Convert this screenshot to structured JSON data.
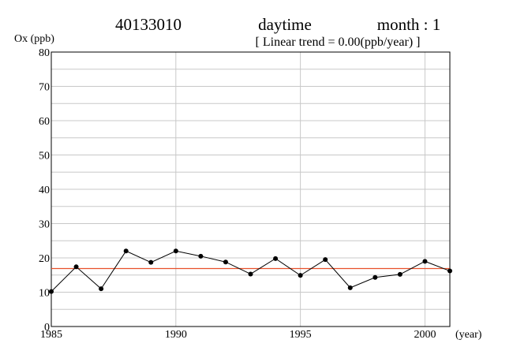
{
  "header": {
    "station": "40133010",
    "period": "daytime",
    "month": "month : 1",
    "trend": "[ Linear trend = 0.00(ppb/year) ]"
  },
  "chart_data": {
    "type": "line",
    "ylabel": "Ox (ppb)",
    "xlabel": "(year)",
    "xlim": [
      1985,
      2001
    ],
    "ylim": [
      0,
      80
    ],
    "x_ticks": [
      1985,
      1990,
      1995,
      2000
    ],
    "y_ticks": [
      0,
      10,
      20,
      30,
      40,
      50,
      60,
      70,
      80
    ],
    "grid": true,
    "series": [
      {
        "type": "line",
        "color": "#000000",
        "x": [
          1985,
          1986,
          1987,
          1988,
          1989,
          1990,
          1991,
          1992,
          1993,
          1994,
          1995,
          1996,
          1997,
          1998,
          1999,
          2000,
          2001
        ],
        "values": [
          10.2,
          17.4,
          11.0,
          22.0,
          18.7,
          22.0,
          20.5,
          18.8,
          15.3,
          19.8,
          14.9,
          19.5,
          11.3,
          14.3,
          15.2,
          19.0,
          16.2
        ]
      },
      {
        "type": "trend",
        "color": "#e8502a",
        "x": [
          1985,
          2001
        ],
        "values": [
          16.9,
          16.9
        ]
      }
    ]
  }
}
